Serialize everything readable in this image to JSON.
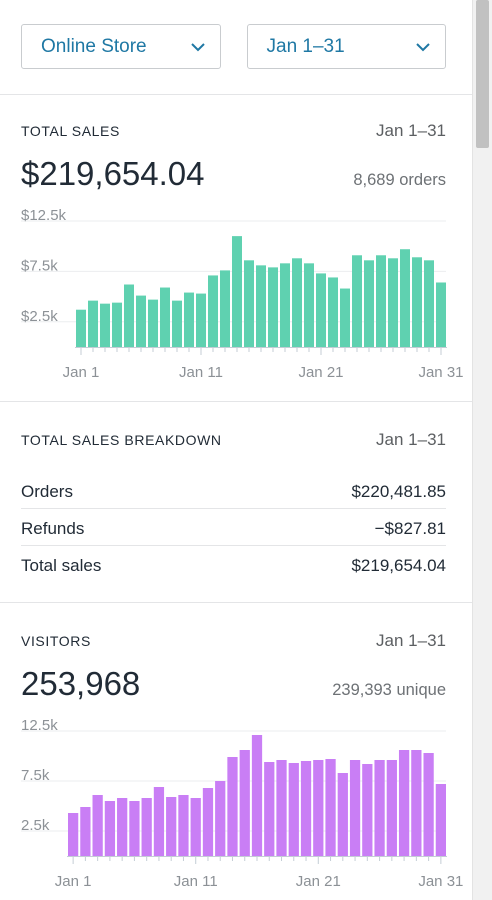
{
  "filters": {
    "store": "Online Store",
    "range": "Jan 1–31",
    "icon": "chevron-down-icon"
  },
  "total_sales": {
    "title": "TOTAL SALES",
    "range": "Jan 1–31",
    "value": "$219,654.04",
    "orders": "8,689 orders"
  },
  "breakdown": {
    "title": "TOTAL SALES BREAKDOWN",
    "range": "Jan 1–31",
    "rows": [
      {
        "label": "Orders",
        "value": "$220,481.85"
      },
      {
        "label": "Refunds",
        "value": "−$827.81"
      },
      {
        "label": "Total sales",
        "value": "$219,654.04"
      }
    ]
  },
  "visitors": {
    "title": "VISITORS",
    "range": "Jan 1–31",
    "value": "253,968",
    "unique": "239,393 unique"
  },
  "chart_data": [
    {
      "type": "bar",
      "color": "#5fd1b0",
      "ylim": [
        0,
        12500
      ],
      "yticks": [
        {
          "v": 2500,
          "label": "$2.5k"
        },
        {
          "v": 7500,
          "label": "$7.5k"
        },
        {
          "v": 12500,
          "label": "$12.5k"
        }
      ],
      "xticks": [
        {
          "i": 0,
          "label": "Jan 1"
        },
        {
          "i": 10,
          "label": "Jan 11"
        },
        {
          "i": 20,
          "label": "Jan 21"
        },
        {
          "i": 30,
          "label": "Jan 31"
        }
      ],
      "categories": [
        "Jan 1",
        "Jan 2",
        "Jan 3",
        "Jan 4",
        "Jan 5",
        "Jan 6",
        "Jan 7",
        "Jan 8",
        "Jan 9",
        "Jan 10",
        "Jan 11",
        "Jan 12",
        "Jan 13",
        "Jan 14",
        "Jan 15",
        "Jan 16",
        "Jan 17",
        "Jan 18",
        "Jan 19",
        "Jan 20",
        "Jan 21",
        "Jan 22",
        "Jan 23",
        "Jan 24",
        "Jan 25",
        "Jan 26",
        "Jan 27",
        "Jan 28",
        "Jan 29",
        "Jan 30",
        "Jan 31"
      ],
      "values": [
        3700,
        4600,
        4300,
        4400,
        6200,
        5100,
        4700,
        5900,
        4600,
        5400,
        5300,
        7100,
        7600,
        11000,
        8600,
        8100,
        7900,
        8300,
        8800,
        8300,
        7300,
        6900,
        5800,
        9100,
        8600,
        9100,
        8800,
        9700,
        8900,
        8600,
        6400
      ]
    },
    {
      "type": "bar",
      "color": "#c97ef5",
      "ylim": [
        0,
        12500
      ],
      "yticks": [
        {
          "v": 2500,
          "label": "2.5k"
        },
        {
          "v": 7500,
          "label": "7.5k"
        },
        {
          "v": 12500,
          "label": "12.5k"
        }
      ],
      "xticks": [
        {
          "i": 0,
          "label": "Jan 1"
        },
        {
          "i": 10,
          "label": "Jan 11"
        },
        {
          "i": 20,
          "label": "Jan 21"
        },
        {
          "i": 30,
          "label": "Jan 31"
        }
      ],
      "categories": [
        "Jan 1",
        "Jan 2",
        "Jan 3",
        "Jan 4",
        "Jan 5",
        "Jan 6",
        "Jan 7",
        "Jan 8",
        "Jan 9",
        "Jan 10",
        "Jan 11",
        "Jan 12",
        "Jan 13",
        "Jan 14",
        "Jan 15",
        "Jan 16",
        "Jan 17",
        "Jan 18",
        "Jan 19",
        "Jan 20",
        "Jan 21",
        "Jan 22",
        "Jan 23",
        "Jan 24",
        "Jan 25",
        "Jan 26",
        "Jan 27",
        "Jan 28",
        "Jan 29",
        "Jan 30",
        "Jan 31"
      ],
      "values": [
        4300,
        4900,
        6100,
        5500,
        5800,
        5500,
        5800,
        6900,
        5900,
        6100,
        5800,
        6800,
        7500,
        9900,
        10600,
        12100,
        9400,
        9600,
        9300,
        9500,
        9600,
        9700,
        8300,
        9600,
        9200,
        9600,
        9600,
        10600,
        10600,
        10300,
        7200
      ]
    }
  ]
}
